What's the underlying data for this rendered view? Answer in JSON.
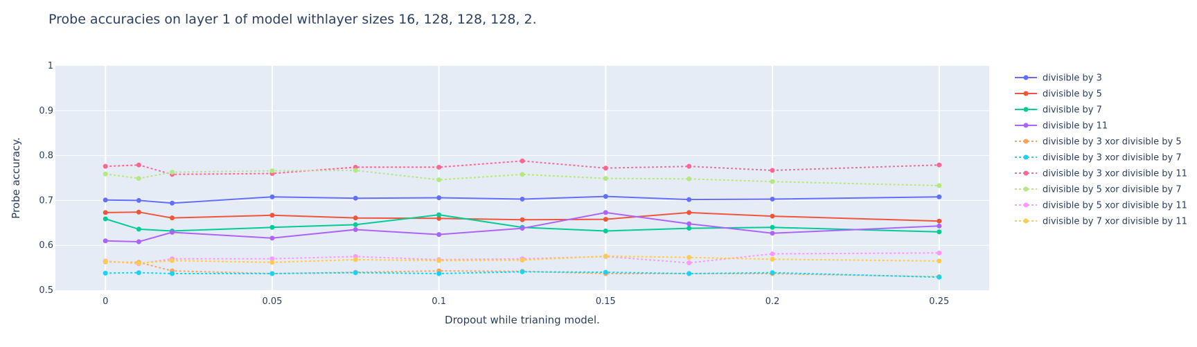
{
  "chart_data": {
    "type": "line",
    "title": "Probe accuracies on layer 1 of model withlayer sizes 16, 128, 128, 128, 2.",
    "xlabel": "Dropout while trianing model.",
    "ylabel": "Probe accuracy.",
    "xlim": [
      -0.015,
      0.265
    ],
    "ylim": [
      0.5,
      1.0
    ],
    "x_ticks": [
      0,
      0.05,
      0.1,
      0.15,
      0.2,
      0.25
    ],
    "y_ticks": [
      0.5,
      0.6,
      0.7,
      0.8,
      0.9,
      1
    ],
    "grid": true,
    "legend_position": "right",
    "x": [
      0,
      0.01,
      0.02,
      0.05,
      0.075,
      0.1,
      0.125,
      0.15,
      0.175,
      0.2,
      0.25
    ],
    "series": [
      {
        "name": "divisible by 3",
        "color": "#636efa",
        "dash": "solid",
        "values": [
          0.701,
          0.7,
          0.694,
          0.708,
          0.705,
          0.706,
          0.703,
          0.709,
          0.702,
          0.703,
          0.708
        ]
      },
      {
        "name": "divisible by 5",
        "color": "#ef553b",
        "dash": "solid",
        "values": [
          0.673,
          0.674,
          0.661,
          0.667,
          0.661,
          0.66,
          0.657,
          0.658,
          0.673,
          0.665,
          0.654
        ]
      },
      {
        "name": "divisible by 7",
        "color": "#00cc96",
        "dash": "solid",
        "values": [
          0.659,
          0.636,
          0.632,
          0.64,
          0.646,
          0.668,
          0.64,
          0.632,
          0.638,
          0.64,
          0.63
        ]
      },
      {
        "name": "divisible by 11",
        "color": "#ab63fa",
        "dash": "solid",
        "values": [
          0.61,
          0.608,
          0.629,
          0.616,
          0.635,
          0.624,
          0.638,
          0.673,
          0.648,
          0.627,
          0.643
        ]
      },
      {
        "name": "divisible by 3 xor divisible by 5",
        "color": "#ffa15a",
        "dash": "dot",
        "values": [
          0.563,
          0.562,
          0.543,
          0.537,
          0.54,
          0.543,
          0.542,
          0.537,
          0.537,
          0.537,
          0.53
        ]
      },
      {
        "name": "divisible by 3 xor divisible by 7",
        "color": "#19d3f3",
        "dash": "dot",
        "values": [
          0.538,
          0.539,
          0.537,
          0.537,
          0.539,
          0.537,
          0.541,
          0.54,
          0.537,
          0.539,
          0.529
        ]
      },
      {
        "name": "divisible by 3 xor divisible by 11",
        "color": "#ff6692",
        "dash": "dot",
        "values": [
          0.776,
          0.779,
          0.758,
          0.76,
          0.774,
          0.774,
          0.788,
          0.772,
          0.776,
          0.767,
          0.779
        ]
      },
      {
        "name": "divisible by 5 xor divisible by 7",
        "color": "#b6e880",
        "dash": "dot",
        "values": [
          0.759,
          0.749,
          0.763,
          0.766,
          0.767,
          0.746,
          0.758,
          0.749,
          0.748,
          0.742,
          0.733
        ]
      },
      {
        "name": "divisible by 5 xor divisible by 11",
        "color": "#ff97ff",
        "dash": "dot",
        "values": [
          0.565,
          0.559,
          0.57,
          0.57,
          0.575,
          0.568,
          0.57,
          0.575,
          0.561,
          0.581,
          0.583
        ]
      },
      {
        "name": "divisible by 7 xor divisible by 11",
        "color": "#fecb52",
        "dash": "dot",
        "values": [
          0.564,
          0.56,
          0.566,
          0.562,
          0.568,
          0.566,
          0.567,
          0.576,
          0.573,
          0.569,
          0.565
        ]
      }
    ]
  }
}
